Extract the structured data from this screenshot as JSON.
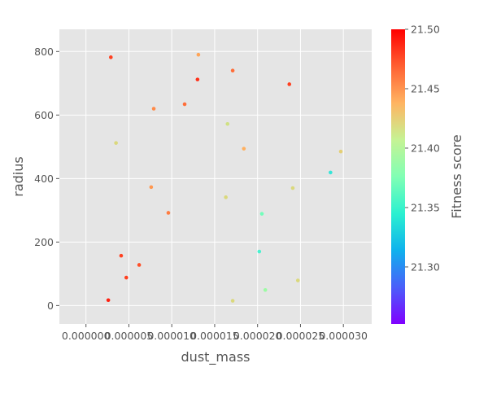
{
  "chart_data": {
    "type": "scatter",
    "xlabel": "dust_mass",
    "ylabel": "radius",
    "colorbar_label": "Fitness score",
    "xlim": [
      -3.1e-06,
      3.33e-05
    ],
    "ylim": [
      -58,
      870
    ],
    "x_ticks": [
      0,
      5e-06,
      1e-05,
      1.5e-05,
      2e-05,
      2.5e-05,
      3e-05
    ],
    "x_tick_labels": [
      "0.000000",
      "0.000005",
      "0.000010",
      "0.000015",
      "0.000020",
      "0.000025",
      "0.000030"
    ],
    "y_ticks": [
      0,
      200,
      400,
      600,
      800
    ],
    "y_tick_labels": [
      "0",
      "200",
      "400",
      "600",
      "800"
    ],
    "colorbar_range": [
      21.252,
      21.5
    ],
    "colorbar_ticks": [
      21.3,
      21.35,
      21.4,
      21.45,
      21.5
    ],
    "colorbar_tick_labels": [
      "21.30",
      "21.35",
      "21.40",
      "21.45",
      "21.50"
    ],
    "colormap": "rainbow",
    "grid": true,
    "background": "#e5e5e5",
    "grid_color": "#ffffff",
    "points": [
      {
        "x": 2.9e-06,
        "y": 782,
        "c": 21.48
      },
      {
        "x": 1.31e-05,
        "y": 790,
        "c": 21.445
      },
      {
        "x": 1.3e-05,
        "y": 712,
        "c": 21.485
      },
      {
        "x": 1.71e-05,
        "y": 740,
        "c": 21.465
      },
      {
        "x": 2.37e-05,
        "y": 697,
        "c": 21.48
      },
      {
        "x": 7.9e-06,
        "y": 620,
        "c": 21.455
      },
      {
        "x": 1.15e-05,
        "y": 634,
        "c": 21.465
      },
      {
        "x": 3.5e-06,
        "y": 512,
        "c": 21.42
      },
      {
        "x": 1.65e-05,
        "y": 572,
        "c": 21.415
      },
      {
        "x": 1.84e-05,
        "y": 494,
        "c": 21.44
      },
      {
        "x": 2.97e-05,
        "y": 485,
        "c": 21.425
      },
      {
        "x": 2.85e-05,
        "y": 419,
        "c": 21.34
      },
      {
        "x": 7.6e-06,
        "y": 373,
        "c": 21.45
      },
      {
        "x": 1.63e-05,
        "y": 341,
        "c": 21.42
      },
      {
        "x": 2.41e-05,
        "y": 370,
        "c": 21.42
      },
      {
        "x": 9.6e-06,
        "y": 292,
        "c": 21.46
      },
      {
        "x": 2.05e-05,
        "y": 289,
        "c": 21.37
      },
      {
        "x": 4.1e-06,
        "y": 157,
        "c": 21.48
      },
      {
        "x": 6.2e-06,
        "y": 128,
        "c": 21.475
      },
      {
        "x": 4.7e-06,
        "y": 88,
        "c": 21.48
      },
      {
        "x": 2.02e-05,
        "y": 170,
        "c": 21.35
      },
      {
        "x": 2.09e-05,
        "y": 49,
        "c": 21.39
      },
      {
        "x": 2.47e-05,
        "y": 79,
        "c": 21.42
      },
      {
        "x": 1.71e-05,
        "y": 15,
        "c": 21.42
      },
      {
        "x": 2.6e-06,
        "y": 17,
        "c": 21.49
      }
    ]
  }
}
